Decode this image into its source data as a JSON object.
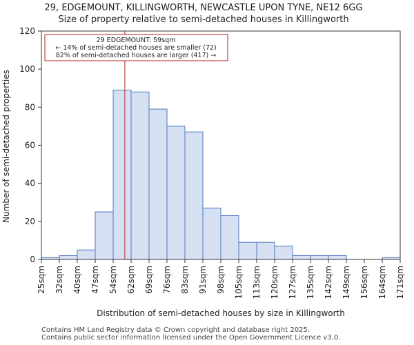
{
  "chart_data": {
    "type": "histogram",
    "title": "29, EDGEMOUNT, KILLINGWORTH, NEWCASTLE UPON TYNE, NE12 6GG",
    "subtitle": "Size of property relative to semi-detached houses in Killingworth",
    "xlabel": "Distribution of semi-detached houses by size in Killingworth",
    "ylabel": "Number of semi-detached properties",
    "categories": [
      "25sqm",
      "32sqm",
      "40sqm",
      "47sqm",
      "54sqm",
      "62sqm",
      "69sqm",
      "76sqm",
      "83sqm",
      "91sqm",
      "98sqm",
      "105sqm",
      "113sqm",
      "120sqm",
      "127sqm",
      "135sqm",
      "142sqm",
      "149sqm",
      "156sqm",
      "164sqm",
      "171sqm"
    ],
    "values": [
      1,
      2,
      5,
      25,
      89,
      88,
      79,
      70,
      67,
      27,
      23,
      9,
      9,
      7,
      2,
      2,
      2,
      0,
      0,
      1
    ],
    "ylim": [
      0,
      120
    ],
    "yticks": [
      0,
      20,
      40,
      60,
      80,
      100,
      120
    ],
    "bar_color": "#d6e0f3",
    "bar_edge_color": "#4f78c0",
    "property_marker": {
      "bin_position": 4.65,
      "color": "#b22222",
      "label_lines": [
        "29 EDGEMOUNT: 59sqm",
        "← 14% of semi-detached houses are smaller (72)",
        "82% of semi-detached houses are larger (417) →"
      ]
    }
  },
  "footer": {
    "line1": "Contains HM Land Registry data © Crown copyright and database right 2025.",
    "line2": "Contains public sector information licensed under the Open Government Licence v3.0."
  }
}
